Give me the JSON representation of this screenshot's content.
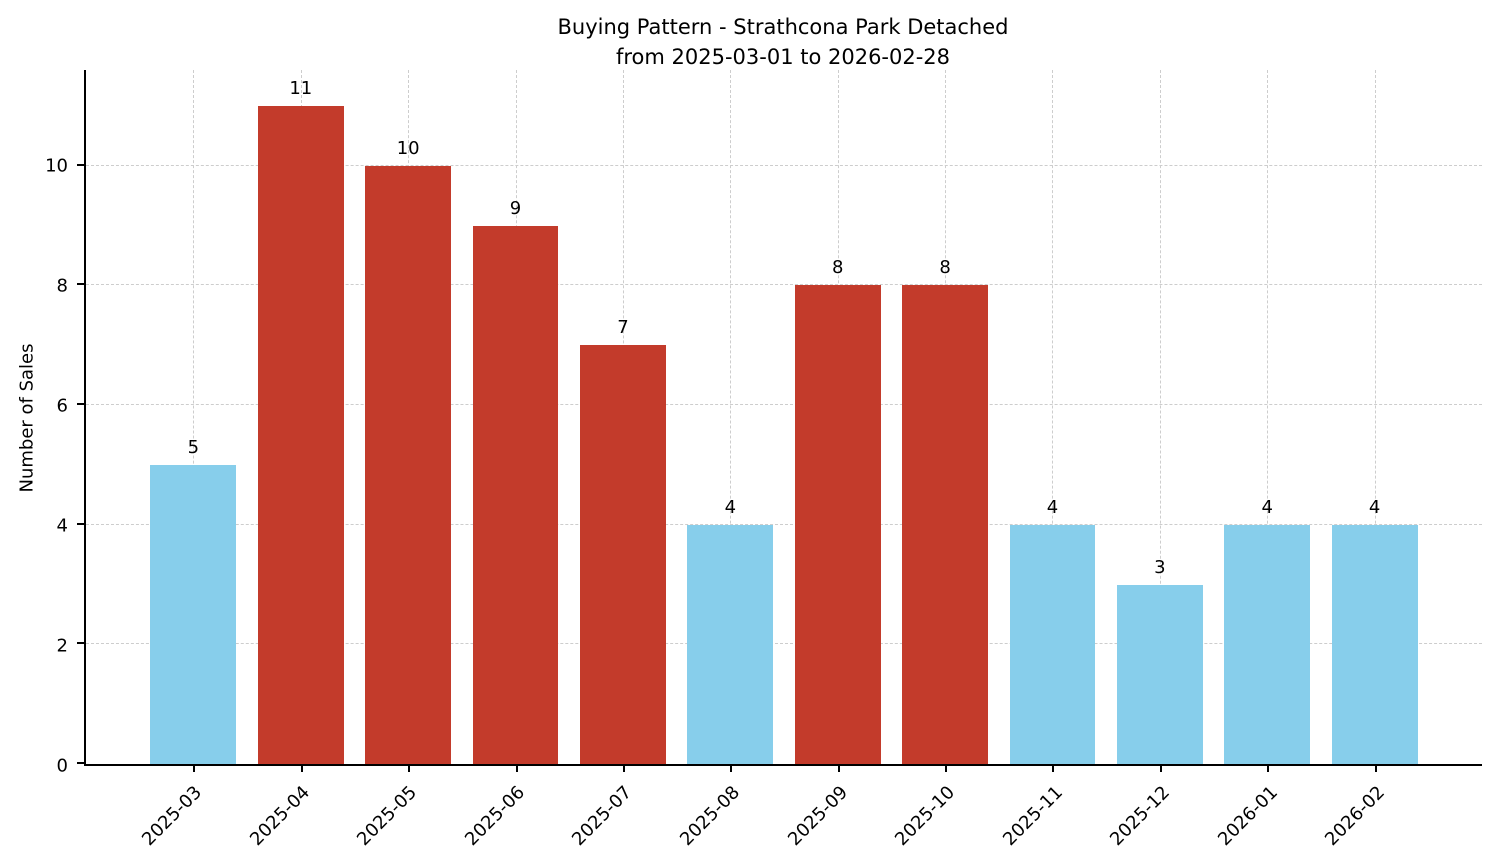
{
  "chart_data": {
    "type": "bar",
    "title": "Buying Pattern - Strathcona Park Detached",
    "subtitle": "from 2025-03-01 to 2026-02-28",
    "xlabel": "",
    "ylabel": "Number of Sales",
    "categories": [
      "2025-03",
      "2025-04",
      "2025-05",
      "2025-06",
      "2025-07",
      "2025-08",
      "2025-09",
      "2025-10",
      "2025-11",
      "2025-12",
      "2026-01",
      "2026-02"
    ],
    "values": [
      5,
      11,
      10,
      9,
      7,
      4,
      8,
      8,
      4,
      3,
      4,
      4
    ],
    "bar_colors": [
      "#87CEEB",
      "#C33B2B",
      "#C33B2B",
      "#C33B2B",
      "#C33B2B",
      "#87CEEB",
      "#C33B2B",
      "#C33B2B",
      "#87CEEB",
      "#87CEEB",
      "#87CEEB",
      "#87CEEB"
    ],
    "value_labels": [
      5,
      11,
      10,
      9,
      7,
      4,
      8,
      8,
      4,
      3,
      4,
      4
    ],
    "ylim": [
      0,
      11.6
    ],
    "yticks": [
      0,
      2,
      4,
      6,
      8,
      10
    ],
    "grid": "dashed",
    "legend": "none",
    "colors": {
      "highlight_bar": "#C33B2B",
      "normal_bar": "#87CEEB",
      "grid": "#cdcdcd",
      "axis": "#000000",
      "background": "#ffffff"
    }
  }
}
